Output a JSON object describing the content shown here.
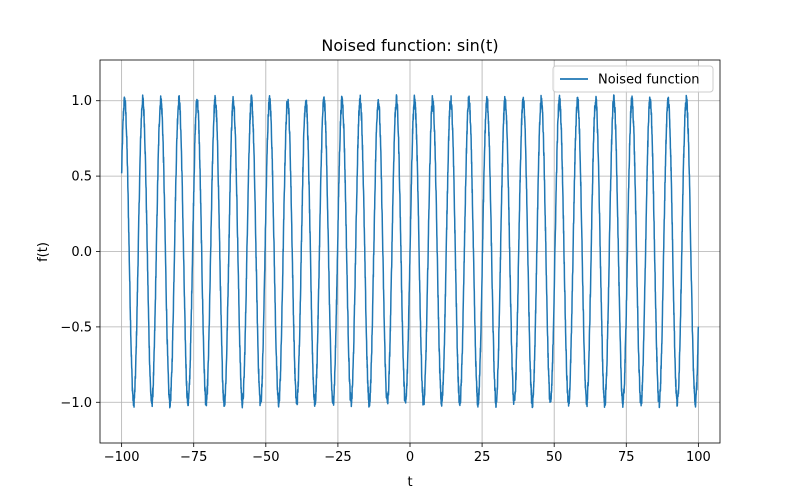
{
  "chart_data": {
    "type": "line",
    "title": "Noised function: sin(t)",
    "xlabel": "t",
    "ylabel": "f(t)",
    "xlim": [
      -107.5,
      107.5
    ],
    "ylim": [
      -1.27,
      1.27
    ],
    "xticks": [
      -100,
      -75,
      -50,
      -25,
      0,
      25,
      50,
      75,
      100
    ],
    "xtick_labels": [
      "−100",
      "−75",
      "−50",
      "−25",
      "0",
      "25",
      "50",
      "75",
      "100"
    ],
    "yticks": [
      1.0,
      0.5,
      0.0,
      -0.5,
      -1.0
    ],
    "ytick_labels": [
      "1.0",
      "0.5",
      "0.0",
      "−0.5",
      "−1.0"
    ],
    "grid": true,
    "legend_position": "top-right",
    "series": [
      {
        "name": "Noised function",
        "color": "#1f77b4",
        "function": "sin(t) + noise",
        "t_range": [
          -100,
          100
        ],
        "noise_amplitude": 0.04
      }
    ]
  }
}
